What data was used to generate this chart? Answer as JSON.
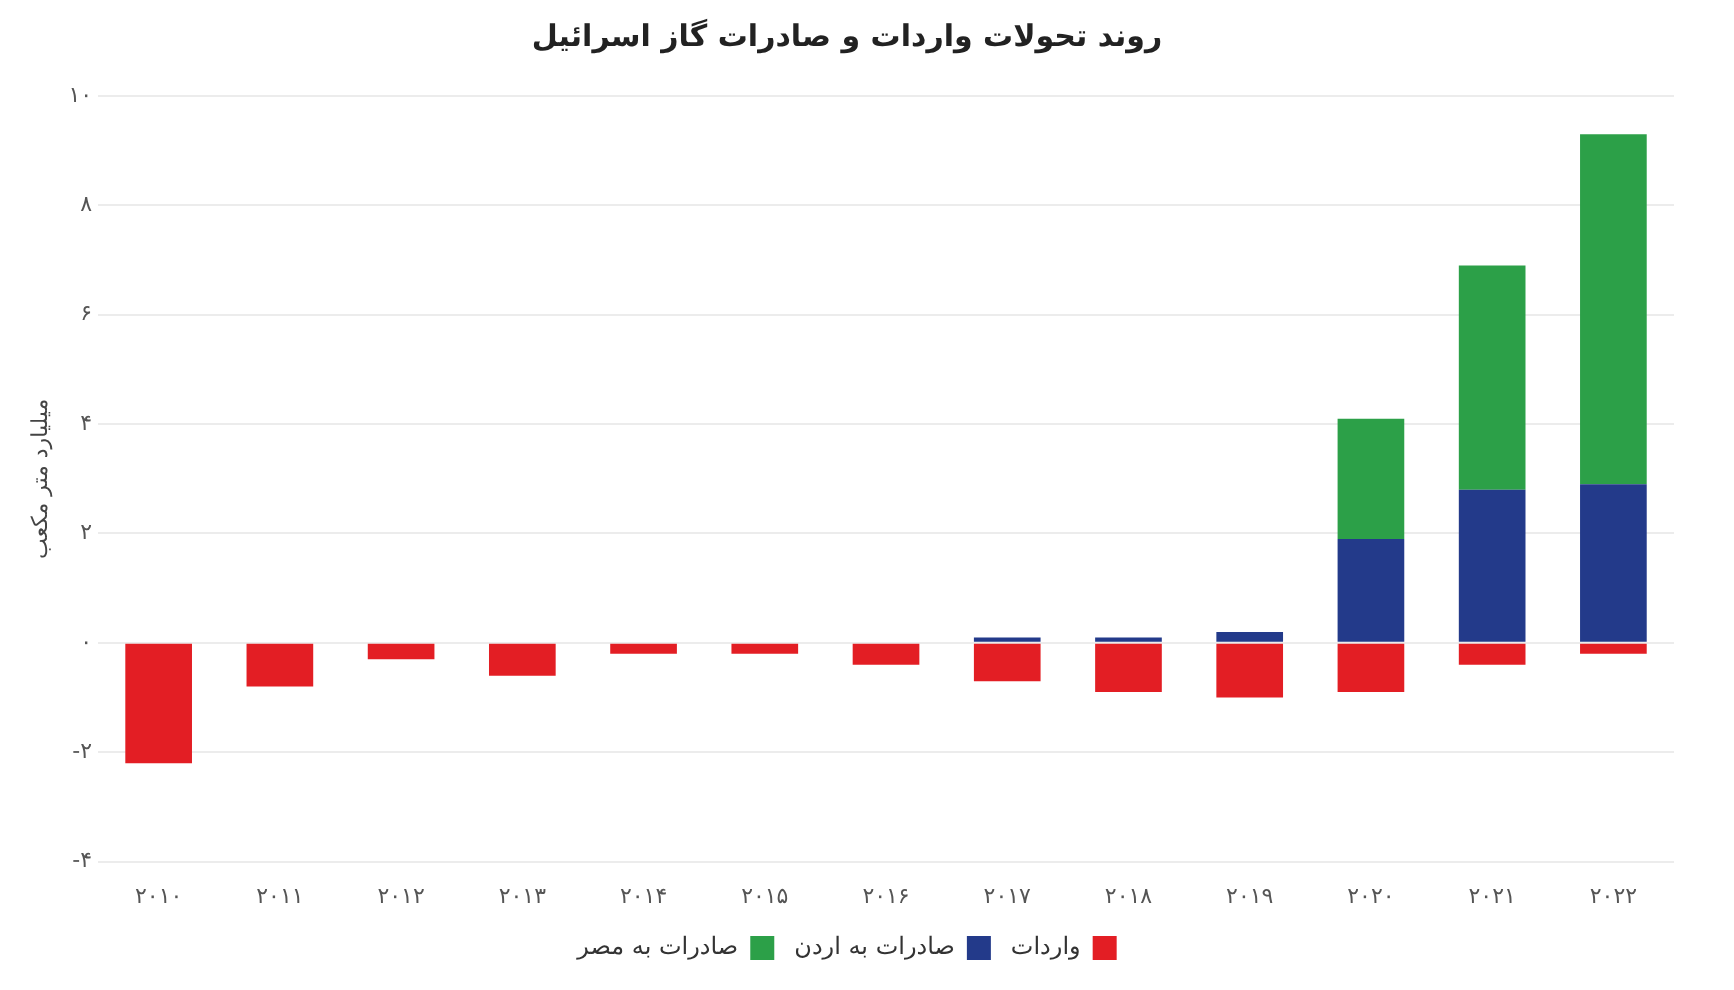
{
  "chart_data": {
    "type": "bar",
    "title": "روند تحولات واردات و صادرات گاز اسرائیل",
    "ylabel": "میلیارد متر مکعب",
    "categories": [
      "۲۰۱۰",
      "۲۰۱۱",
      "۲۰۱۲",
      "۲۰۱۳",
      "۲۰۱۴",
      "۲۰۱۵",
      "۲۰۱۶",
      "۲۰۱۷",
      "۲۰۱۸",
      "۲۰۱۹",
      "۲۰۲۰",
      "۲۰۲۱",
      "۲۰۲۲"
    ],
    "stacked": true,
    "series": [
      {
        "name": "واردات",
        "color": "#e31e24",
        "values": [
          -2.2,
          -0.8,
          -0.3,
          -0.6,
          -0.2,
          -0.2,
          -0.4,
          -0.7,
          -0.9,
          -1.0,
          -0.9,
          -0.4,
          -0.2
        ]
      },
      {
        "name": "صادرات به اردن",
        "color": "#233a8a",
        "values": [
          0,
          0,
          0,
          0,
          0,
          0,
          0,
          0.1,
          0.1,
          0.2,
          1.9,
          2.8,
          2.9
        ]
      },
      {
        "name": "صادرات به مصر",
        "color": "#2ca048",
        "values": [
          0,
          0,
          0,
          0,
          0,
          0,
          0,
          0,
          0,
          0,
          2.2,
          4.1,
          6.4
        ]
      }
    ],
    "ylim": [
      -4,
      10
    ],
    "yticks": [
      {
        "value": -4,
        "label": "-۴"
      },
      {
        "value": -2,
        "label": "-۲"
      },
      {
        "value": 0,
        "label": "۰"
      },
      {
        "value": 2,
        "label": "۲"
      },
      {
        "value": 4,
        "label": "۴"
      },
      {
        "value": 6,
        "label": "۶"
      },
      {
        "value": 8,
        "label": "۸"
      },
      {
        "value": 10,
        "label": "۱۰"
      }
    ],
    "grid": "y",
    "legend": "bottom"
  }
}
